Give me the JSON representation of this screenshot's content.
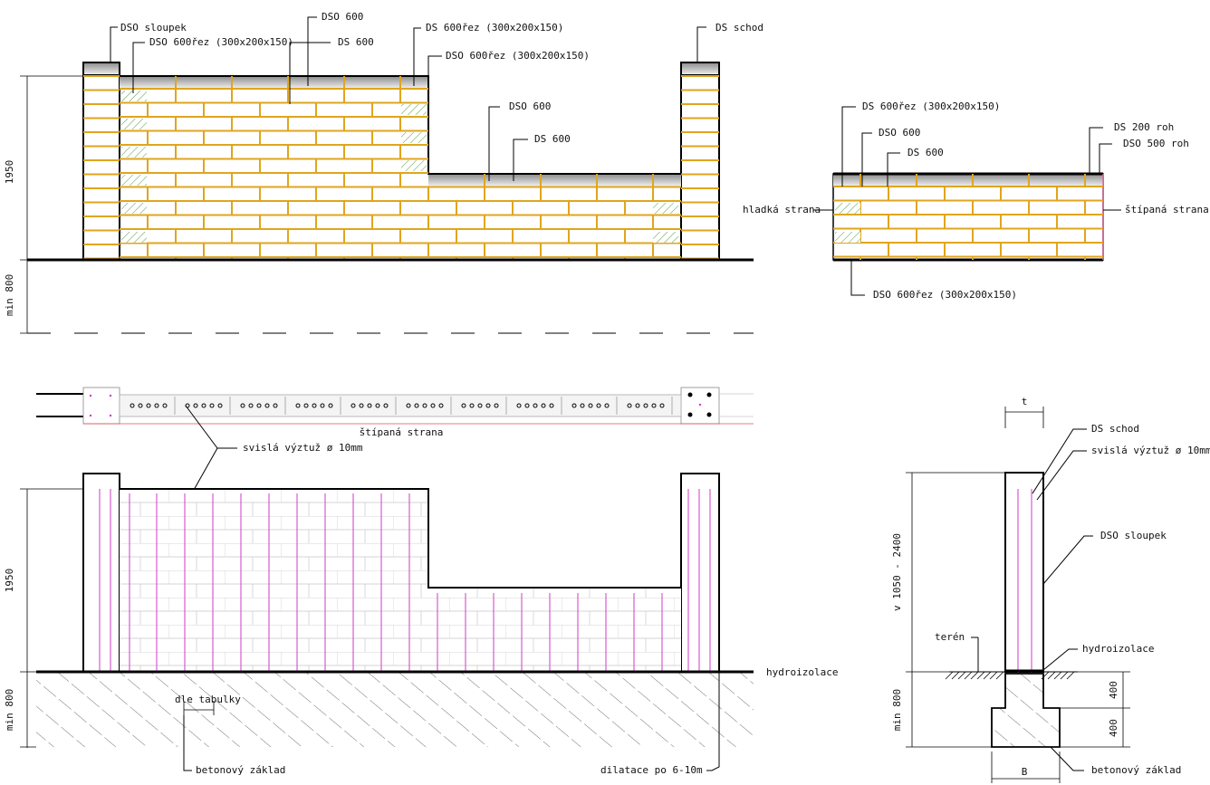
{
  "labels": {
    "dso_sloupek": "DSO sloupek",
    "dso_600rez": "DSO 600řez (300x200x150)",
    "dso_600": "DSO 600",
    "ds_600": "DS 600",
    "ds_600rez": "DS 600řez (300x200x150)",
    "ds_schod": "DS schod",
    "ds_200_roh": "DS 200 roh",
    "dso_500_roh": "DSO 500 roh",
    "hladka_strana": "hladká strana",
    "stipana_strana": "štípaná strana",
    "svisla_vyztuz": "svislá výztuž ø 10mm",
    "svisla_vyztuz_2": "svislá výztuž  ø 10mm",
    "hydroizolace": "hydroizolace",
    "dle_tabulky": "dle tabulky",
    "betonovy_zaklad": "betonový základ",
    "dilatace": "dilatace po 6-10m",
    "teren": "terén"
  },
  "dimensions": {
    "h1950": "1950",
    "min800": "min 800",
    "v_range": "v 1050 - 2400",
    "d400": "400",
    "t": "t",
    "b": "B"
  },
  "colors": {
    "brick_joint": "#e0a51e",
    "rebar": "#d23ac8",
    "hatch_green": "#4a9a3a"
  }
}
